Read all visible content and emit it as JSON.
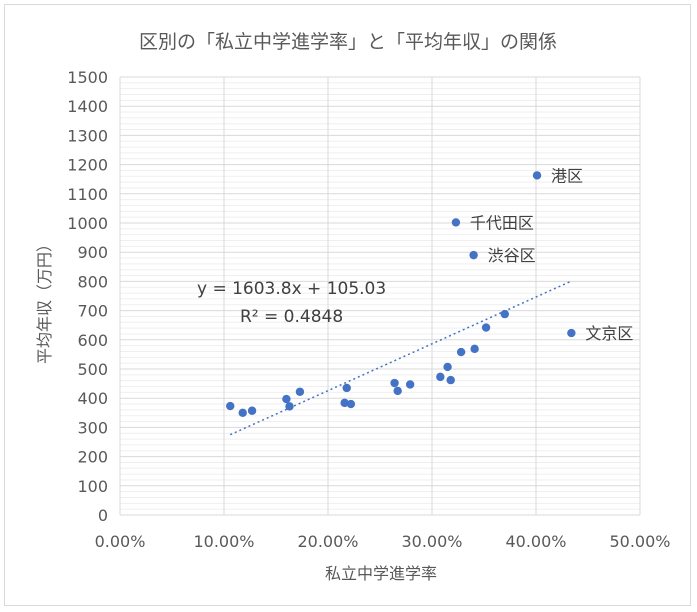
{
  "chart_data": {
    "type": "scatter",
    "title": "区別の「私立中学進学率」と「平均年収」の関係",
    "xlabel": "私立中学進学率",
    "ylabel": "平均年収（万円）",
    "xlim": [
      0,
      0.5
    ],
    "ylim": [
      0,
      1500
    ],
    "x_ticks": [
      0,
      0.1,
      0.2,
      0.3,
      0.4,
      0.5
    ],
    "x_tick_labels": [
      "0.00%",
      "10.00%",
      "20.00%",
      "30.00%",
      "40.00%",
      "50.00%"
    ],
    "y_ticks": [
      0,
      100,
      200,
      300,
      400,
      500,
      600,
      700,
      800,
      900,
      1000,
      1100,
      1200,
      1300,
      1400,
      1500
    ],
    "y_tick_labels": [
      "0",
      "100",
      "200",
      "300",
      "400",
      "500",
      "600",
      "700",
      "800",
      "900",
      "1000",
      "1100",
      "1200",
      "1300",
      "1400",
      "1500"
    ],
    "grid": "major vertical and horizontal, minor horizontal",
    "point_color": "#4472c4",
    "trendline_color": "#4472c4",
    "points": [
      {
        "x": 0.106,
        "y": 373
      },
      {
        "x": 0.118,
        "y": 350
      },
      {
        "x": 0.127,
        "y": 357
      },
      {
        "x": 0.16,
        "y": 397
      },
      {
        "x": 0.163,
        "y": 372
      },
      {
        "x": 0.173,
        "y": 422
      },
      {
        "x": 0.216,
        "y": 384
      },
      {
        "x": 0.218,
        "y": 435
      },
      {
        "x": 0.222,
        "y": 380
      },
      {
        "x": 0.264,
        "y": 452
      },
      {
        "x": 0.267,
        "y": 425
      },
      {
        "x": 0.279,
        "y": 447
      },
      {
        "x": 0.308,
        "y": 473
      },
      {
        "x": 0.315,
        "y": 507
      },
      {
        "x": 0.318,
        "y": 462
      },
      {
        "x": 0.323,
        "y": 1002,
        "label": "千代田区"
      },
      {
        "x": 0.328,
        "y": 558
      },
      {
        "x": 0.34,
        "y": 890,
        "label": "渋谷区"
      },
      {
        "x": 0.341,
        "y": 569
      },
      {
        "x": 0.352,
        "y": 642
      },
      {
        "x": 0.37,
        "y": 688
      },
      {
        "x": 0.401,
        "y": 1163,
        "label": "港区"
      },
      {
        "x": 0.434,
        "y": 623,
        "label": "文京区"
      }
    ],
    "trendline": {
      "type": "linear",
      "slope": 1603.8,
      "intercept": 105.03,
      "x_range": [
        0.106,
        0.434
      ],
      "equation": "y = 1603.8x + 105.03",
      "r_squared": "R² = 0.4848"
    }
  }
}
